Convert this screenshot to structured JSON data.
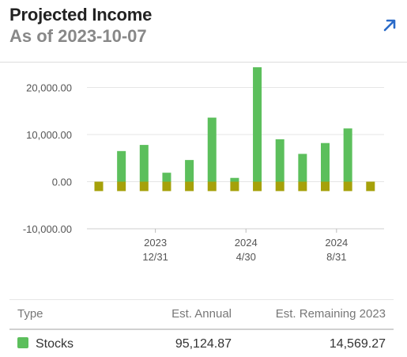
{
  "header": {
    "title": "Projected Income",
    "subtitle": "As of 2023-10-07"
  },
  "colors": {
    "income": "#5cbf5c",
    "negative": "#a6a10a",
    "accent": "#2a6ac8"
  },
  "chart_data": {
    "type": "bar",
    "ylim": [
      -10000,
      26000
    ],
    "yticks": [
      {
        "value": 20000,
        "label": "20,000.00"
      },
      {
        "value": 10000,
        "label": "10,000.00"
      },
      {
        "value": 0,
        "label": "0.00"
      },
      {
        "value": -10000,
        "label": "-10,000.00"
      }
    ],
    "x_ticks": [
      {
        "index": 2.5,
        "year": "2023",
        "date": "12/31"
      },
      {
        "index": 6.5,
        "year": "2024",
        "date": "4/30"
      },
      {
        "index": 10.5,
        "year": "2024",
        "date": "8/31"
      }
    ],
    "series": [
      {
        "values": [
          0,
          6500,
          7800,
          1900,
          4600,
          13600,
          800,
          24300,
          9000,
          5900,
          8200,
          11300,
          0
        ]
      },
      {
        "values": [
          -2000,
          -2000,
          -2000,
          -2000,
          -2000,
          -2000,
          -2000,
          -2000,
          -2000,
          -2000,
          -2000,
          -2000,
          -2000
        ]
      }
    ]
  },
  "table": {
    "headers": [
      "Type",
      "Est. Annual",
      "Est. Remaining 2023"
    ],
    "rows": [
      {
        "type": "Stocks",
        "annual": "95,124.87",
        "remaining": "14,569.27"
      }
    ]
  }
}
